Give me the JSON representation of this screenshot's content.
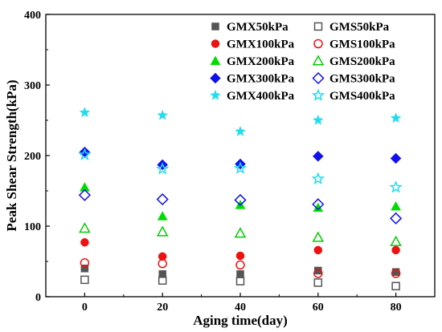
{
  "chart_data": {
    "type": "scatter",
    "title": "",
    "xlabel": "Aging time(day)",
    "ylabel": "Peak Shear Strength(kPa)",
    "xlim": [
      -10,
      90
    ],
    "ylim": [
      0,
      400
    ],
    "x_ticks": [
      0,
      20,
      40,
      60,
      80
    ],
    "y_ticks": [
      0,
      100,
      200,
      300,
      400
    ],
    "x_tick_labels": [
      "0",
      "20",
      "40",
      "60",
      "80"
    ],
    "y_tick_labels": [
      "0",
      "100",
      "200",
      "300",
      "400"
    ],
    "grid": false,
    "legend_position": "top-right",
    "series": [
      {
        "name": "GMX50kPa",
        "marker": "square",
        "filled": true,
        "color": "#555555",
        "x": [
          0,
          20,
          40,
          60,
          80
        ],
        "y": [
          40,
          32,
          32,
          37,
          35
        ]
      },
      {
        "name": "GMS50kPa",
        "marker": "square",
        "filled": false,
        "color": "#555555",
        "x": [
          0,
          20,
          40,
          60,
          80
        ],
        "y": [
          24,
          23,
          22,
          20,
          15
        ]
      },
      {
        "name": "GMX100kPa",
        "marker": "circle",
        "filled": true,
        "color": "#ee1111",
        "x": [
          0,
          20,
          40,
          60,
          80
        ],
        "y": [
          77,
          57,
          58,
          66,
          66
        ]
      },
      {
        "name": "GMS100kPa",
        "marker": "circle",
        "filled": false,
        "color": "#ee1111",
        "x": [
          0,
          20,
          40,
          60,
          80
        ],
        "y": [
          48,
          47,
          45,
          33,
          33
        ]
      },
      {
        "name": "GMX200kPa",
        "marker": "triangle",
        "filled": true,
        "color": "#00dd00",
        "x": [
          0,
          20,
          40,
          60,
          80
        ],
        "y": [
          155,
          114,
          130,
          126,
          128
        ]
      },
      {
        "name": "GMS200kPa",
        "marker": "triangle",
        "filled": false,
        "color": "#00cc00",
        "x": [
          0,
          20,
          40,
          60,
          80
        ],
        "y": [
          97,
          92,
          90,
          84,
          78
        ]
      },
      {
        "name": "GMX300kPa",
        "marker": "diamond",
        "filled": true,
        "color": "#1111ee",
        "x": [
          0,
          20,
          40,
          60,
          80
        ],
        "y": [
          205,
          187,
          188,
          199,
          196
        ]
      },
      {
        "name": "GMS300kPa",
        "marker": "diamond",
        "filled": false,
        "color": "#1111ee",
        "x": [
          0,
          20,
          40,
          60,
          80
        ],
        "y": [
          144,
          138,
          137,
          131,
          111
        ]
      },
      {
        "name": "GMX400kPa",
        "marker": "star",
        "filled": true,
        "color": "#22ddee",
        "x": [
          0,
          20,
          40,
          60,
          80
        ],
        "y": [
          261,
          257,
          234,
          250,
          253
        ]
      },
      {
        "name": "GMS400kPa",
        "marker": "star",
        "filled": false,
        "color": "#22ddee",
        "x": [
          0,
          20,
          40,
          60,
          80
        ],
        "y": [
          201,
          181,
          182,
          167,
          155
        ]
      }
    ]
  }
}
